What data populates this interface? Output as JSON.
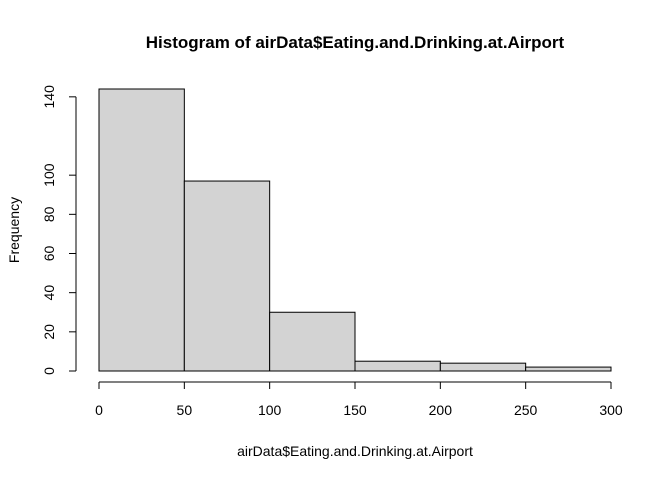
{
  "chart_data": {
    "type": "bar",
    "title": "Histogram of airData$Eating.and.Drinking.at.Airport",
    "xlabel": "airData$Eating.and.Drinking.at.Airport",
    "ylabel": "Frequency",
    "bins": [
      {
        "start": 0,
        "end": 50,
        "count": 144
      },
      {
        "start": 50,
        "end": 100,
        "count": 97
      },
      {
        "start": 100,
        "end": 150,
        "count": 30
      },
      {
        "start": 150,
        "end": 200,
        "count": 5
      },
      {
        "start": 200,
        "end": 250,
        "count": 4
      },
      {
        "start": 250,
        "end": 300,
        "count": 2
      }
    ],
    "xlim": [
      0,
      300
    ],
    "ylim": [
      0,
      144
    ],
    "x_ticks": [
      "0",
      "50",
      "100",
      "150",
      "200",
      "250",
      "300"
    ],
    "y_ticks": [
      "0",
      "20",
      "40",
      "60",
      "80",
      "100",
      "140"
    ],
    "colors": {
      "bar_fill": "#d3d3d3",
      "bar_border": "#000000"
    },
    "grid": false,
    "legend": "none"
  }
}
